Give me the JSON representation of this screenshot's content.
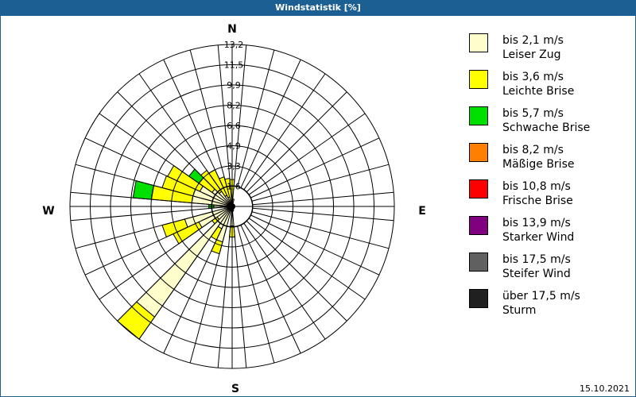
{
  "title": "Windstatistik [%]",
  "date": "15.10.2021",
  "compass": {
    "n": "N",
    "e": "E",
    "s": "S",
    "w": "W"
  },
  "legend": [
    {
      "speed": "bis 2,1 m/s",
      "name": "Leiser Zug",
      "color": "#ffffcc"
    },
    {
      "speed": "bis 3,6 m/s",
      "name": "Leichte Brise",
      "color": "#ffff00"
    },
    {
      "speed": "bis 5,7 m/s",
      "name": "Schwache Brise",
      "color": "#00e000"
    },
    {
      "speed": "bis 8,2 m/s",
      "name": "Mäßige Brise",
      "color": "#ff8000"
    },
    {
      "speed": "bis 10,8 m/s",
      "name": "Frische Brise",
      "color": "#ff0000"
    },
    {
      "speed": "bis 13,9 m/s",
      "name": "Starker Wind",
      "color": "#800080"
    },
    {
      "speed": "bis 17,5 m/s",
      "name": "Steifer Wind",
      "color": "#606060"
    },
    {
      "speed": "über 17,5 m/s",
      "name": "Sturm",
      "color": "#202020"
    }
  ],
  "chart_data": {
    "type": "polar-bar (wind rose)",
    "title": "Windstatistik [%]",
    "ring_labels": [
      "1,6",
      "3,3",
      "4,9",
      "6,6",
      "8,2",
      "9,9",
      "11,5",
      "13,2"
    ],
    "rmax": 13.2,
    "sector_width_deg": 10,
    "series_names": [
      "Leiser Zug",
      "Leichte Brise",
      "Schwache Brise"
    ],
    "note": "cumulative percentages per direction (deg from N, clockwise)",
    "directions": [
      {
        "deg": 0,
        "cum": [
          0.5,
          2.2
        ]
      },
      {
        "deg": 10,
        "cum": [
          0.3,
          0.6
        ]
      },
      {
        "deg": 160,
        "cum": [
          0.3
        ]
      },
      {
        "deg": 170,
        "cum": [
          0.4
        ]
      },
      {
        "deg": 180,
        "cum": [
          1.6,
          2.5
        ]
      },
      {
        "deg": 190,
        "cum": [
          0.3
        ]
      },
      {
        "deg": 200,
        "cum": [
          3.0,
          4.0
        ]
      },
      {
        "deg": 210,
        "cum": [
          2.0,
          3.0
        ]
      },
      {
        "deg": 220,
        "cum": [
          11.0,
          13.2
        ]
      },
      {
        "deg": 230,
        "cum": [
          1.5,
          2.0
        ]
      },
      {
        "deg": 240,
        "cum": [
          3.0,
          5.3
        ]
      },
      {
        "deg": 250,
        "cum": [
          4.0,
          5.9
        ]
      },
      {
        "deg": 260,
        "cum": [
          0.6
        ]
      },
      {
        "deg": 270,
        "cum": [
          1.5,
          1.5,
          1.9
        ]
      },
      {
        "deg": 280,
        "cum": [
          3.3,
          6.6,
          8.1
        ]
      },
      {
        "deg": 290,
        "cum": [
          3.3,
          5.9
        ]
      },
      {
        "deg": 300,
        "cum": [
          2.9,
          5.8
        ]
      },
      {
        "deg": 310,
        "cum": [
          2.0,
          3.3,
          4.3
        ]
      },
      {
        "deg": 320,
        "cum": [
          1.5,
          3.6
        ]
      },
      {
        "deg": 330,
        "cum": [
          1.0,
          3.3
        ]
      },
      {
        "deg": 340,
        "cum": [
          0.8,
          2.5
        ]
      },
      {
        "deg": 350,
        "cum": [
          0.5,
          2.3
        ]
      }
    ]
  }
}
